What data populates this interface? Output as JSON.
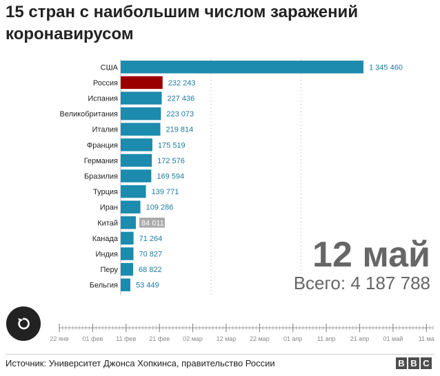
{
  "title": "15 стран с наибольшим числом заражений коронавирусом",
  "date_label": "12 май",
  "total_prefix": "Всего: ",
  "total_value": "4 187 788",
  "source": "Источник: Университет Джонса Хопкинса, правительство России",
  "logo_letters": [
    "B",
    "B",
    "C"
  ],
  "icons": {
    "replay": "replay-icon"
  },
  "colors": {
    "default_bar": "#1c8bad",
    "highlight_bar": "#9b0000",
    "china_label_bg": "#aaaaaa",
    "value_text": "#1a7aa0"
  },
  "chart_data": {
    "type": "bar",
    "orientation": "horizontal",
    "highlight": "Россия",
    "categories": [
      "США",
      "Россия",
      "Испания",
      "Великобритания",
      "Италия",
      "Франция",
      "Германия",
      "Бразилия",
      "Турция",
      "Иран",
      "Китай",
      "Канада",
      "Индия",
      "Перу",
      "Бельгия"
    ],
    "values": [
      1345460,
      232243,
      227436,
      223073,
      219814,
      175519,
      172576,
      169594,
      139771,
      109286,
      84011,
      71264,
      70827,
      68822,
      53449
    ],
    "value_labels": [
      "1 345 460",
      "232 243",
      "227 436",
      "223 073",
      "219 814",
      "175 519",
      "172 576",
      "169 594",
      "139 771",
      "109 286",
      "84 011",
      "71 264",
      "70 827",
      "68 822",
      "53 449"
    ],
    "xlim": [
      0,
      1400000
    ],
    "gridlines": [
      500000,
      1000000
    ],
    "timeline_ticks": [
      "22 янв",
      "01 фев",
      "11 фев",
      "21 фев",
      "02 мар",
      "12 мар",
      "22 мар",
      "01 апр",
      "11 апр",
      "21 апр",
      "01 май",
      "11 ма"
    ]
  }
}
